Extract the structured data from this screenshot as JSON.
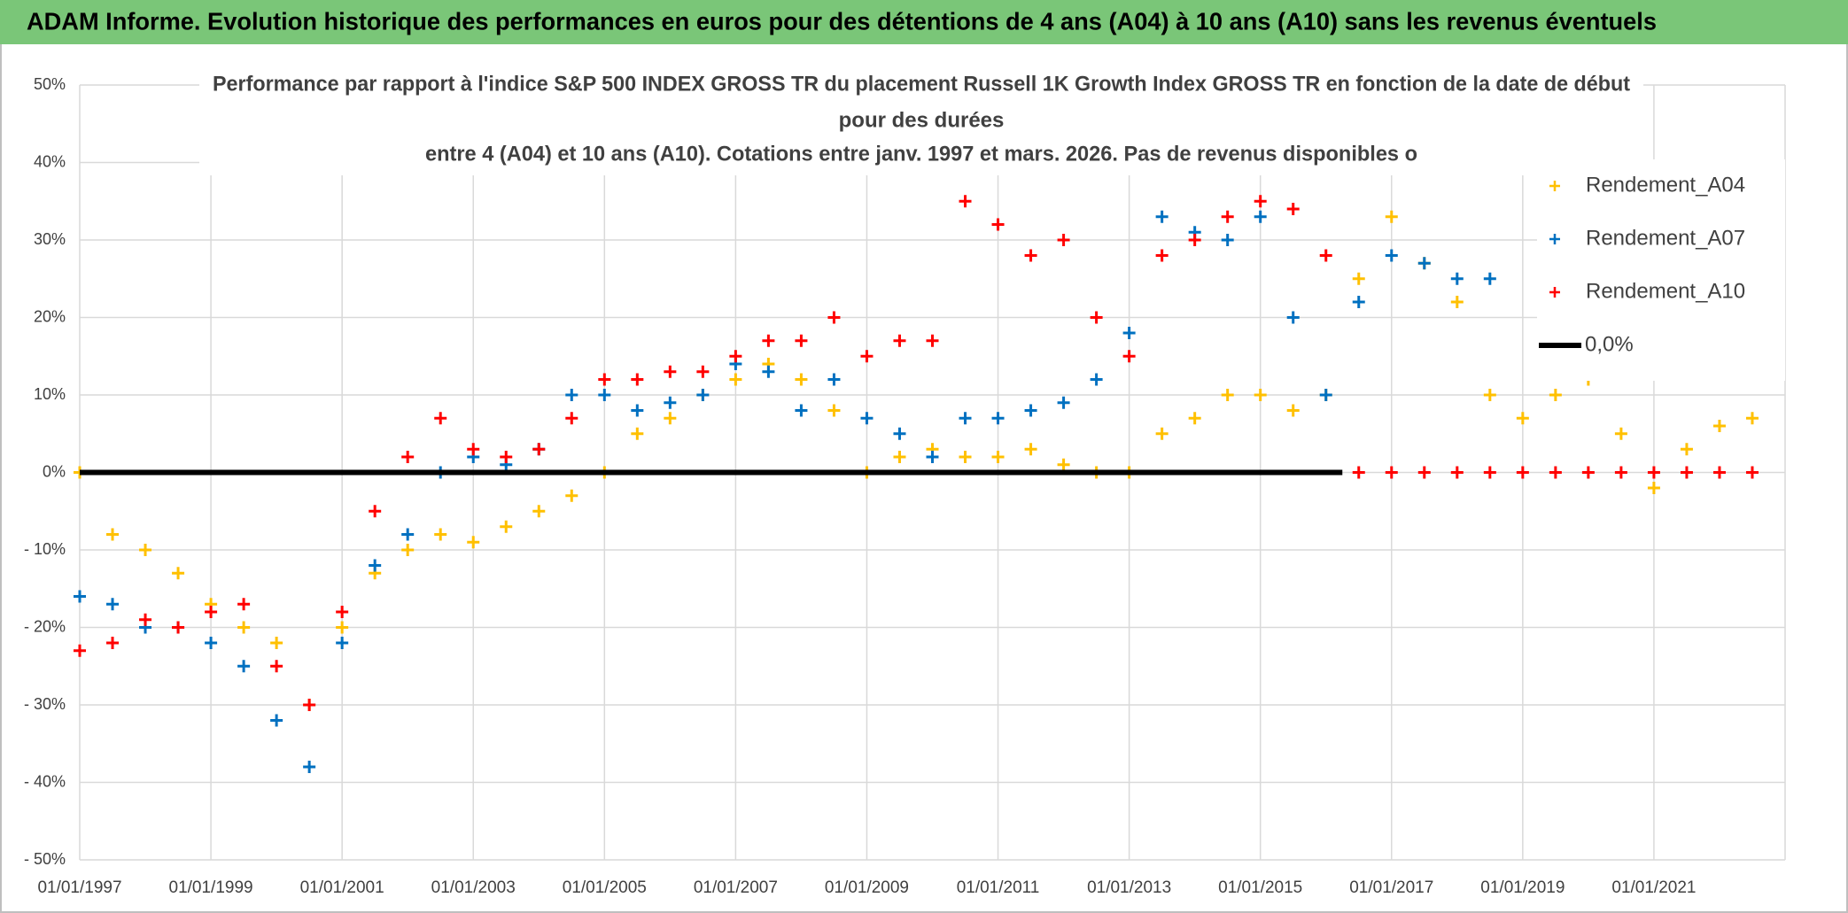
{
  "header": {
    "title": "ADAM Informe. Evolution historique des performances en euros pour des détentions de 4 ans (A04) à 10 ans (A10) sans les revenus éventuels"
  },
  "chart_data": {
    "type": "scatter",
    "title": [
      "Performance par rapport à l'indice S&P 500 INDEX GROSS TR  du placement Russell 1K Growth Index GROSS TR en fonction de la date de début",
      "pour des durées",
      "entre 4 (A04) et 10 ans (A10). Cotations entre janv. 1997 et mars. 2026. Pas de revenus disponibles o"
    ],
    "xlim": [
      "01/01/1997",
      "01/01/2023"
    ],
    "xticks": [
      "01/01/1997",
      "01/01/1999",
      "01/01/2001",
      "01/01/2003",
      "01/01/2005",
      "01/01/2007",
      "01/01/2009",
      "01/01/2011",
      "01/01/2013",
      "01/01/2015",
      "01/01/2017",
      "01/01/2019",
      "01/01/2021"
    ],
    "ylim": [
      -50,
      50
    ],
    "yticks": [
      {
        "value": 50,
        "label": "50%"
      },
      {
        "value": 40,
        "label": "40%"
      },
      {
        "value": 30,
        "label": "30%"
      },
      {
        "value": 20,
        "label": "20%"
      },
      {
        "value": 10,
        "label": "10%"
      },
      {
        "value": 0,
        "label": "0%"
      },
      {
        "value": -10,
        "label": "- 10%"
      },
      {
        "value": -20,
        "label": "- 20%"
      },
      {
        "value": -30,
        "label": "- 30%"
      },
      {
        "value": -40,
        "label": "- 40%"
      },
      {
        "value": -50,
        "label": "- 50%"
      }
    ],
    "grid": true,
    "legend": "right",
    "series": [
      {
        "name": "Rendement_A04",
        "color": "#ffc000",
        "mode": "markers",
        "x": [
          "01/01/1997",
          "01/07/1997",
          "01/01/1998",
          "01/07/1998",
          "01/01/1999",
          "01/07/1999",
          "01/01/2000",
          "01/07/2000",
          "01/01/2001",
          "01/07/2001",
          "01/01/2002",
          "01/07/2002",
          "01/01/2003",
          "01/07/2003",
          "01/01/2004",
          "01/07/2004",
          "01/01/2005",
          "01/07/2005",
          "01/01/2006",
          "01/07/2006",
          "01/01/2007",
          "01/07/2007",
          "01/01/2008",
          "01/07/2008",
          "01/01/2009",
          "01/07/2009",
          "01/01/2010",
          "01/07/2010",
          "01/01/2011",
          "01/07/2011",
          "01/01/2012",
          "01/07/2012",
          "01/01/2013",
          "01/07/2013",
          "01/01/2014",
          "01/07/2014",
          "01/01/2015",
          "01/07/2015",
          "01/01/2016",
          "01/07/2016",
          "01/01/2017",
          "01/07/2017",
          "01/01/2018",
          "01/07/2018",
          "01/01/2019",
          "01/07/2019",
          "01/01/2020",
          "01/07/2020",
          "01/01/2021",
          "01/07/2021",
          "01/01/2022",
          "01/07/2022"
        ],
        "values": [
          0,
          -8,
          -10,
          -13,
          -17,
          -20,
          -22,
          -30,
          -20,
          -13,
          -10,
          -8,
          -9,
          -7,
          -5,
          -3,
          0,
          5,
          7,
          10,
          12,
          14,
          12,
          8,
          0,
          2,
          3,
          2,
          2,
          3,
          1,
          0,
          0,
          5,
          7,
          10,
          10,
          8,
          10,
          25,
          33,
          27,
          22,
          10,
          7,
          10,
          12,
          5,
          -2,
          3,
          6,
          7
        ]
      },
      {
        "name": "Rendement_A07",
        "color": "#0070c0",
        "mode": "markers",
        "x": [
          "01/01/1997",
          "01/07/1997",
          "01/01/1998",
          "01/07/1998",
          "01/01/1999",
          "01/07/1999",
          "01/01/2000",
          "01/07/2000",
          "01/01/2001",
          "01/07/2001",
          "01/01/2002",
          "01/07/2002",
          "01/01/2003",
          "01/07/2003",
          "01/01/2004",
          "01/07/2004",
          "01/01/2005",
          "01/07/2005",
          "01/01/2006",
          "01/07/2006",
          "01/01/2007",
          "01/07/2007",
          "01/01/2008",
          "01/07/2008",
          "01/01/2009",
          "01/07/2009",
          "01/01/2010",
          "01/07/2010",
          "01/01/2011",
          "01/07/2011",
          "01/01/2012",
          "01/07/2012",
          "01/01/2013",
          "01/07/2013",
          "01/01/2014",
          "01/07/2014",
          "01/01/2015",
          "01/07/2015",
          "01/01/2016",
          "01/07/2016",
          "01/01/2017",
          "01/07/2017",
          "01/01/2018",
          "01/07/2018"
        ],
        "values": [
          -16,
          -17,
          -20,
          -20,
          -22,
          -25,
          -32,
          -38,
          -22,
          -12,
          -8,
          0,
          2,
          1,
          3,
          10,
          10,
          8,
          9,
          10,
          14,
          13,
          8,
          12,
          7,
          5,
          2,
          7,
          7,
          8,
          9,
          12,
          18,
          33,
          31,
          30,
          33,
          20,
          10,
          22,
          28,
          27,
          25,
          25
        ]
      },
      {
        "name": "Rendement_A10",
        "color": "#ff0000",
        "mode": "markers",
        "x": [
          "01/01/1997",
          "01/07/1997",
          "01/01/1998",
          "01/07/1998",
          "01/01/1999",
          "01/07/1999",
          "01/01/2000",
          "01/07/2000",
          "01/01/2001",
          "01/07/2001",
          "01/01/2002",
          "01/07/2002",
          "01/01/2003",
          "01/07/2003",
          "01/01/2004",
          "01/07/2004",
          "01/01/2005",
          "01/07/2005",
          "01/01/2006",
          "01/07/2006",
          "01/01/2007",
          "01/07/2007",
          "01/01/2008",
          "01/07/2008",
          "01/01/2009",
          "01/07/2009",
          "01/01/2010",
          "01/07/2010",
          "01/01/2011",
          "01/07/2011",
          "01/01/2012",
          "01/07/2012",
          "01/01/2013",
          "01/07/2013",
          "01/01/2014",
          "01/07/2014",
          "01/01/2015",
          "01/07/2015",
          "01/01/2016",
          "01/07/2016",
          "01/01/2017",
          "01/07/2017",
          "01/01/2018",
          "01/07/2018",
          "01/01/2019",
          "01/07/2019",
          "01/01/2020",
          "01/07/2020",
          "01/01/2021",
          "01/07/2021",
          "01/01/2022",
          "01/07/2022"
        ],
        "values": [
          -23,
          -22,
          -19,
          -20,
          -18,
          -17,
          -25,
          -30,
          -18,
          -5,
          2,
          7,
          3,
          2,
          3,
          7,
          12,
          12,
          13,
          13,
          15,
          17,
          17,
          20,
          15,
          17,
          17,
          35,
          32,
          28,
          30,
          20,
          15,
          28,
          30,
          33,
          35,
          34,
          28,
          0,
          0,
          0,
          0,
          0,
          0,
          0,
          0,
          0,
          0,
          0,
          0,
          0
        ]
      },
      {
        "name": "0,0%",
        "color": "#000000",
        "mode": "line",
        "x": [
          "01/01/1997",
          "01/04/2016"
        ],
        "values": [
          0,
          0
        ]
      }
    ]
  }
}
